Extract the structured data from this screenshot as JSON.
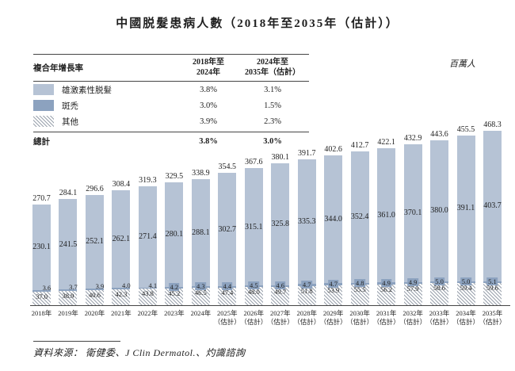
{
  "title": "中國脱髮患病人數（2018年至2035年（估計））",
  "unit_label": "百萬人",
  "source": "資料來源： 衛健委、J Clin Dermatol.、灼識諮詢",
  "cagr_table": {
    "header": {
      "label": "複合年增長率",
      "col1_line1": "2018年至",
      "col1_line2": "2024年",
      "col2_line1": "2024年至",
      "col2_line2": "2035年（估計）"
    },
    "rows": [
      {
        "name": "雄激素性脱髮",
        "swatch": "light-blue-swatch",
        "c1": "3.8%",
        "c2": "3.1%"
      },
      {
        "name": "斑禿",
        "swatch": "dark-blue-swatch",
        "c1": "3.0%",
        "c2": "1.5%"
      },
      {
        "name": "其他",
        "swatch": "diagonal-hatch-swatch",
        "c1": "3.9%",
        "c2": "2.3%"
      }
    ],
    "total": {
      "label": "總計",
      "c1": "3.8%",
      "c2": "3.0%"
    }
  },
  "chart_data": {
    "type": "bar",
    "stacked": true,
    "title": "中國脱髮患病人數（2018年至2035年（估計））",
    "ylabel": "百萬人",
    "xlabel": "",
    "ylim": [
      0,
      500
    ],
    "grid": false,
    "legend_position": "top-left-table",
    "categories": [
      {
        "label": "2018年",
        "sub": ""
      },
      {
        "label": "2019年",
        "sub": ""
      },
      {
        "label": "2020年",
        "sub": ""
      },
      {
        "label": "2021年",
        "sub": ""
      },
      {
        "label": "2022年",
        "sub": ""
      },
      {
        "label": "2023年",
        "sub": ""
      },
      {
        "label": "2024年",
        "sub": ""
      },
      {
        "label": "2025年",
        "sub": "（估計）"
      },
      {
        "label": "2026年",
        "sub": "（估計）"
      },
      {
        "label": "2027年",
        "sub": "（估計）"
      },
      {
        "label": "2028年",
        "sub": "（估計）"
      },
      {
        "label": "2029年",
        "sub": "（估計）"
      },
      {
        "label": "2030年",
        "sub": "（估計）"
      },
      {
        "label": "2031年",
        "sub": "（估計）"
      },
      {
        "label": "2032年",
        "sub": "（估計）"
      },
      {
        "label": "2033年",
        "sub": "（估計）"
      },
      {
        "label": "2034年",
        "sub": "（估計）"
      },
      {
        "label": "2035年",
        "sub": "（估計）"
      }
    ],
    "series": [
      {
        "name": "雄激素性脱髮",
        "color": "#b6c3d5",
        "values": [
          "230.1",
          "241.5",
          "252.1",
          "262.1",
          "271.4",
          "280.1",
          "288.1",
          "302.7",
          "315.1",
          "325.8",
          "335.3",
          "344.0",
          "352.4",
          "361.0",
          "370.1",
          "380.0",
          "391.1",
          "403.7"
        ]
      },
      {
        "name": "斑禿",
        "color": "#8ca2bf",
        "values": [
          "3.6",
          "3.7",
          "3.9",
          "4.0",
          "4.1",
          "4.2",
          "4.3",
          "4.4",
          "4.5",
          "4.6",
          "4.7",
          "4.7",
          "4.8",
          "4.9",
          "4.9",
          "5.0",
          "5.0",
          "5.1"
        ]
      },
      {
        "name": "其他",
        "pattern": "diagonal-hatch",
        "values": [
          "37.0",
          "38.9",
          "40.6",
          "42.3",
          "43.8",
          "45.2",
          "46.5",
          "47.4",
          "48.0",
          "49.7",
          "51.8",
          "53.9",
          "55.5",
          "56.2",
          "57.9",
          "58.6",
          "59.4",
          "59.6"
        ]
      }
    ],
    "totals": [
      "270.7",
      "284.1",
      "296.6",
      "308.4",
      "319.3",
      "329.5",
      "338.9",
      "354.5",
      "367.6",
      "380.1",
      "391.7",
      "402.6",
      "412.7",
      "422.1",
      "432.9",
      "443.6",
      "455.5",
      "468.3"
    ]
  }
}
